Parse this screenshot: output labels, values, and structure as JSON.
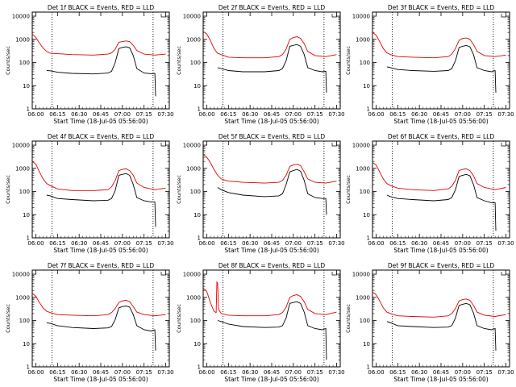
{
  "colors": {
    "events": "#000000",
    "lld": "#e00000",
    "axis": "#000000"
  },
  "chart_data": {
    "type": "line",
    "shared": {
      "xlabel": "Start Time (18-Jul-05 05:56:00)",
      "ylabel": "Counts/sec",
      "x_ticks": [
        "06:00",
        "06:15",
        "06:30",
        "06:45",
        "07:00",
        "07:15",
        "07:30"
      ],
      "y_ticks": [
        "1",
        "10",
        "100",
        "1000",
        "10000"
      ],
      "y_scale": "log",
      "ylim": [
        1,
        15000
      ],
      "x_unit": "minutes since 06:00",
      "xlim": [
        -1,
        37
      ],
      "vlines": [
        4.5,
        32.5
      ]
    },
    "panels": [
      {
        "title": "Det 1f BLACK = Events, RED = LLD",
        "lld": {
          "x": [
            -1,
            0,
            1,
            2,
            3,
            4,
            6,
            10,
            16,
            20,
            21,
            22,
            23,
            24,
            25,
            26,
            27,
            28,
            30,
            33,
            36
          ],
          "y": [
            1700,
            1200,
            700,
            420,
            300,
            250,
            240,
            220,
            210,
            230,
            260,
            380,
            750,
            800,
            850,
            800,
            550,
            330,
            230,
            210,
            230
          ]
        },
        "events": {
          "x": [
            3,
            4,
            6,
            10,
            16,
            20,
            21,
            22,
            23,
            24,
            25,
            26,
            27,
            28,
            30,
            32,
            33,
            33.2
          ],
          "y": [
            45,
            44,
            38,
            34,
            32,
            35,
            42,
            100,
            400,
            450,
            480,
            430,
            200,
            55,
            35,
            33,
            34,
            3.5
          ]
        }
      },
      {
        "title": "Det 2f BLACK = Events, RED = LLD",
        "lld": {
          "x": [
            -1,
            0,
            1,
            2,
            3,
            4,
            6,
            10,
            16,
            20,
            21,
            22,
            23,
            24,
            25,
            26,
            27,
            28,
            30,
            33,
            36
          ],
          "y": [
            2200,
            1700,
            900,
            400,
            250,
            220,
            170,
            160,
            160,
            180,
            220,
            380,
            1000,
            1200,
            1300,
            1100,
            650,
            300,
            200,
            180,
            220
          ]
        },
        "events": {
          "x": [
            3,
            4,
            6,
            10,
            16,
            20,
            21,
            22,
            23,
            24,
            25,
            26,
            27,
            28,
            30,
            32,
            33,
            33.2
          ],
          "y": [
            60,
            55,
            45,
            40,
            40,
            45,
            55,
            120,
            500,
            550,
            600,
            500,
            220,
            60,
            45,
            40,
            42,
            5
          ]
        }
      },
      {
        "title": "Det 3f BLACK = Events, RED = LLD",
        "lld": {
          "x": [
            -1,
            0,
            1,
            2,
            3,
            4,
            6,
            10,
            16,
            20,
            21,
            22,
            23,
            24,
            25,
            26,
            27,
            28,
            30,
            33,
            36
          ],
          "y": [
            2000,
            1500,
            800,
            400,
            260,
            220,
            180,
            170,
            160,
            180,
            230,
            400,
            900,
            1100,
            1150,
            1000,
            600,
            300,
            200,
            180,
            210
          ]
        },
        "events": {
          "x": [
            3,
            4,
            6,
            10,
            16,
            20,
            21,
            22,
            23,
            24,
            25,
            26,
            27,
            28,
            30,
            32,
            33,
            33.2
          ],
          "y": [
            65,
            60,
            50,
            45,
            42,
            45,
            55,
            120,
            450,
            500,
            550,
            480,
            220,
            60,
            45,
            40,
            45,
            5
          ]
        }
      },
      {
        "title": "Det 4f BLACK = Events, RED = LLD",
        "lld": {
          "x": [
            -1,
            0,
            1,
            2,
            3,
            4,
            6,
            10,
            16,
            20,
            21,
            22,
            23,
            24,
            25,
            26,
            27,
            28,
            30,
            33,
            36
          ],
          "y": [
            2000,
            1500,
            700,
            350,
            220,
            180,
            130,
            110,
            110,
            120,
            160,
            300,
            800,
            900,
            950,
            800,
            500,
            230,
            150,
            120,
            140
          ]
        },
        "events": {
          "x": [
            3,
            4,
            6,
            10,
            16,
            20,
            21,
            22,
            23,
            24,
            25,
            26,
            27,
            28,
            30,
            32,
            33,
            33.2
          ],
          "y": [
            70,
            65,
            50,
            45,
            40,
            42,
            50,
            110,
            500,
            550,
            600,
            500,
            200,
            55,
            40,
            35,
            35,
            3
          ]
        }
      },
      {
        "title": "Det 5f BLACK = Events, RED = LLD",
        "lld": {
          "x": [
            -1,
            0,
            1,
            2,
            3,
            4,
            6,
            10,
            16,
            20,
            21,
            22,
            23,
            24,
            25,
            26,
            27,
            28,
            30,
            33,
            36
          ],
          "y": [
            4000,
            3000,
            1800,
            900,
            500,
            350,
            280,
            250,
            230,
            250,
            300,
            500,
            1200,
            1400,
            1500,
            1300,
            700,
            350,
            250,
            230,
            280
          ]
        },
        "events": {
          "x": [
            3,
            4,
            6,
            10,
            16,
            20,
            21,
            22,
            23,
            24,
            25,
            26,
            27,
            28,
            30,
            32,
            33,
            33.2
          ],
          "y": [
            150,
            120,
            90,
            70,
            60,
            65,
            80,
            200,
            700,
            800,
            900,
            750,
            300,
            80,
            55,
            50,
            50,
            10
          ]
        }
      },
      {
        "title": "Det 6f BLACK = Events, RED = LLD",
        "lld": {
          "x": [
            -1,
            0,
            1,
            2,
            3,
            4,
            6,
            10,
            16,
            20,
            21,
            22,
            23,
            24,
            25,
            26,
            27,
            28,
            30,
            33,
            36
          ],
          "y": [
            1800,
            1400,
            700,
            350,
            220,
            180,
            140,
            120,
            110,
            130,
            170,
            300,
            800,
            900,
            950,
            800,
            480,
            220,
            150,
            120,
            150
          ]
        },
        "events": {
          "x": [
            3,
            4,
            6,
            10,
            16,
            20,
            21,
            22,
            23,
            24,
            25,
            26,
            27,
            28,
            30,
            32,
            33,
            33.2
          ],
          "y": [
            70,
            60,
            50,
            45,
            40,
            45,
            55,
            120,
            450,
            500,
            550,
            480,
            200,
            55,
            40,
            33,
            33,
            2
          ]
        }
      },
      {
        "title": "Det 7f BLACK = Events, RED = LLD",
        "lld": {
          "x": [
            -1,
            0,
            1,
            2,
            3,
            4,
            6,
            10,
            16,
            20,
            21,
            22,
            23,
            24,
            25,
            26,
            27,
            28,
            30,
            33,
            36
          ],
          "y": [
            1500,
            1100,
            600,
            350,
            250,
            220,
            180,
            170,
            160,
            180,
            220,
            330,
            600,
            700,
            750,
            650,
            400,
            230,
            180,
            160,
            180
          ]
        },
        "events": {
          "x": [
            3,
            4,
            6,
            10,
            16,
            20,
            21,
            22,
            23,
            24,
            25,
            26,
            27,
            28,
            30,
            32,
            33,
            33.2
          ],
          "y": [
            80,
            75,
            60,
            50,
            45,
            48,
            55,
            110,
            350,
            400,
            420,
            380,
            180,
            60,
            40,
            35,
            40,
            5
          ]
        }
      },
      {
        "title": "Det 8f BLACK = Events, RED = LLD",
        "lld": {
          "x": [
            -1,
            0,
            1,
            2,
            2.6,
            2.8,
            3.0,
            3.3,
            4,
            6,
            10,
            16,
            20,
            21,
            22,
            23,
            24,
            25,
            26,
            27,
            28,
            30,
            33,
            36
          ],
          "y": [
            2500,
            1800,
            600,
            250,
            220,
            4500,
            4000,
            300,
            200,
            170,
            160,
            160,
            180,
            220,
            380,
            1000,
            1200,
            1300,
            1100,
            650,
            300,
            200,
            180,
            230
          ]
        },
        "events": {
          "x": [
            3,
            4,
            6,
            10,
            16,
            20,
            21,
            22,
            23,
            24,
            25,
            26,
            27,
            28,
            30,
            32,
            33,
            33.2
          ],
          "y": [
            100,
            90,
            70,
            55,
            50,
            52,
            60,
            130,
            550,
            600,
            650,
            550,
            230,
            60,
            45,
            40,
            45,
            2
          ]
        }
      },
      {
        "title": "Det 9f BLACK = Events, RED = LLD",
        "lld": {
          "x": [
            -1,
            0,
            1,
            2,
            3,
            4,
            6,
            10,
            16,
            20,
            21,
            22,
            23,
            24,
            25,
            26,
            27,
            28,
            30,
            33,
            36
          ],
          "y": [
            1700,
            1300,
            700,
            350,
            230,
            200,
            160,
            150,
            140,
            160,
            200,
            330,
            700,
            800,
            850,
            750,
            450,
            230,
            170,
            150,
            180
          ]
        },
        "events": {
          "x": [
            3,
            4,
            6,
            10,
            16,
            20,
            21,
            22,
            23,
            24,
            25,
            26,
            27,
            28,
            30,
            32,
            33,
            33.2
          ],
          "y": [
            90,
            80,
            60,
            55,
            50,
            52,
            60,
            130,
            450,
            500,
            550,
            480,
            210,
            60,
            45,
            40,
            45,
            5
          ]
        }
      }
    ]
  }
}
